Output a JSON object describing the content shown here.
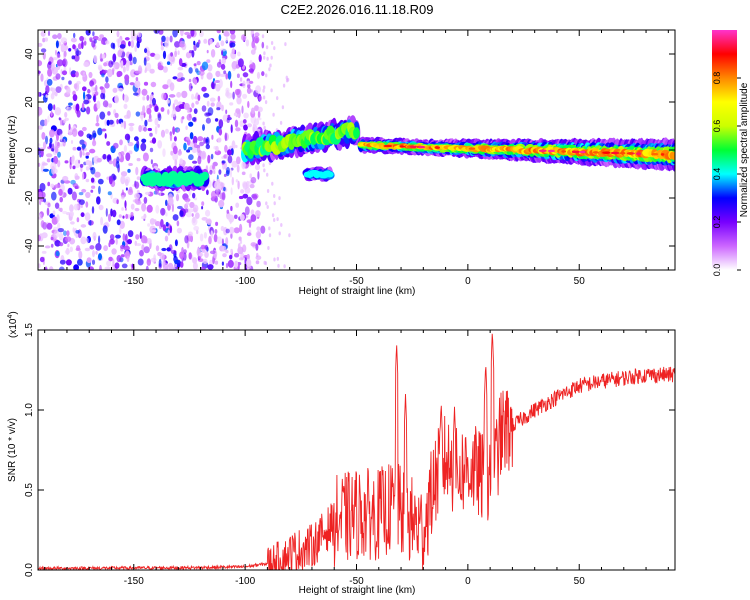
{
  "title": "C2E2.2026.016.11.18.R09",
  "chart_data": [
    {
      "type": "heatmap",
      "name": "spectrogram",
      "xlabel": "Height of straight line (km)",
      "ylabel": "Frequency (Hz)",
      "xlim": [
        -193,
        93
      ],
      "ylim": [
        -50,
        50
      ],
      "xticks": [
        -150,
        -100,
        -50,
        0,
        50
      ],
      "yticks": [
        -40,
        -20,
        0,
        20,
        40
      ],
      "colorbar": {
        "label": "Normalized spectral amplitude",
        "range": [
          0,
          1
        ],
        "ticks": [
          0.0,
          0.2,
          0.4,
          0.6,
          0.8
        ],
        "colormap": [
          "#ffffff",
          "#cc66ff",
          "#7700ff",
          "#0000ff",
          "#00ffff",
          "#00ff33",
          "#ccff00",
          "#ffff00",
          "#ff8800",
          "#ff0000",
          "#ff33cc"
        ]
      },
      "features": [
        {
          "label": "noise region",
          "x_range": [
            -193,
            -92
          ],
          "y_range": [
            -50,
            50
          ],
          "amplitude": 0.1
        },
        {
          "label": "early tone",
          "x_range": [
            -145,
            -118
          ],
          "y_center": -12,
          "amplitude": 0.45
        },
        {
          "label": "rising band",
          "x_range": [
            -100,
            -50
          ],
          "y_start": 0,
          "y_end": 8,
          "amplitude": 0.6
        },
        {
          "label": "side tone",
          "x_range": [
            -72,
            -62
          ],
          "y_center": -10,
          "amplitude": 0.4
        },
        {
          "label": "main tone",
          "x_range": [
            -48,
            93
          ],
          "y_start": 2,
          "y_end": -2,
          "amplitude": 0.9
        }
      ]
    },
    {
      "type": "line",
      "name": "snr",
      "xlabel": "Height of straight line (km)",
      "ylabel": "SNR (10 * v/v)",
      "y_scale_label": "(x10",
      "y_scale_exp": "4",
      "xlim": [
        -193,
        93
      ],
      "ylim": [
        0,
        1.5
      ],
      "xticks": [
        -150,
        -100,
        -50,
        0,
        50
      ],
      "yticks": [
        0.0,
        0.5,
        1.0,
        1.5
      ],
      "ytick_labels": [
        "0.0",
        "0.5",
        "1.0",
        "1.5"
      ],
      "color": "#ee2222",
      "anchors": [
        [
          -193,
          0.01
        ],
        [
          -120,
          0.015
        ],
        [
          -100,
          0.02
        ],
        [
          -90,
          0.04
        ],
        [
          -80,
          0.1
        ],
        [
          -70,
          0.15
        ],
        [
          -60,
          0.3
        ],
        [
          -50,
          0.35
        ],
        [
          -40,
          0.35
        ],
        [
          -33,
          0.4
        ],
        [
          -25,
          0.3
        ],
        [
          -20,
          0.25
        ],
        [
          -15,
          0.55
        ],
        [
          -10,
          0.7
        ],
        [
          -5,
          0.6
        ],
        [
          0,
          0.65
        ],
        [
          5,
          0.6
        ],
        [
          10,
          0.5
        ],
        [
          15,
          0.85
        ],
        [
          20,
          0.9
        ],
        [
          30,
          1.0
        ],
        [
          40,
          1.08
        ],
        [
          50,
          1.15
        ],
        [
          60,
          1.18
        ],
        [
          70,
          1.2
        ],
        [
          80,
          1.22
        ],
        [
          93,
          1.22
        ]
      ],
      "spikes": [
        [
          -32,
          1.42
        ],
        [
          -28,
          1.1
        ],
        [
          -12,
          1.05
        ],
        [
          -6,
          1.02
        ],
        [
          8,
          1.3
        ],
        [
          11,
          1.5
        ]
      ]
    }
  ]
}
